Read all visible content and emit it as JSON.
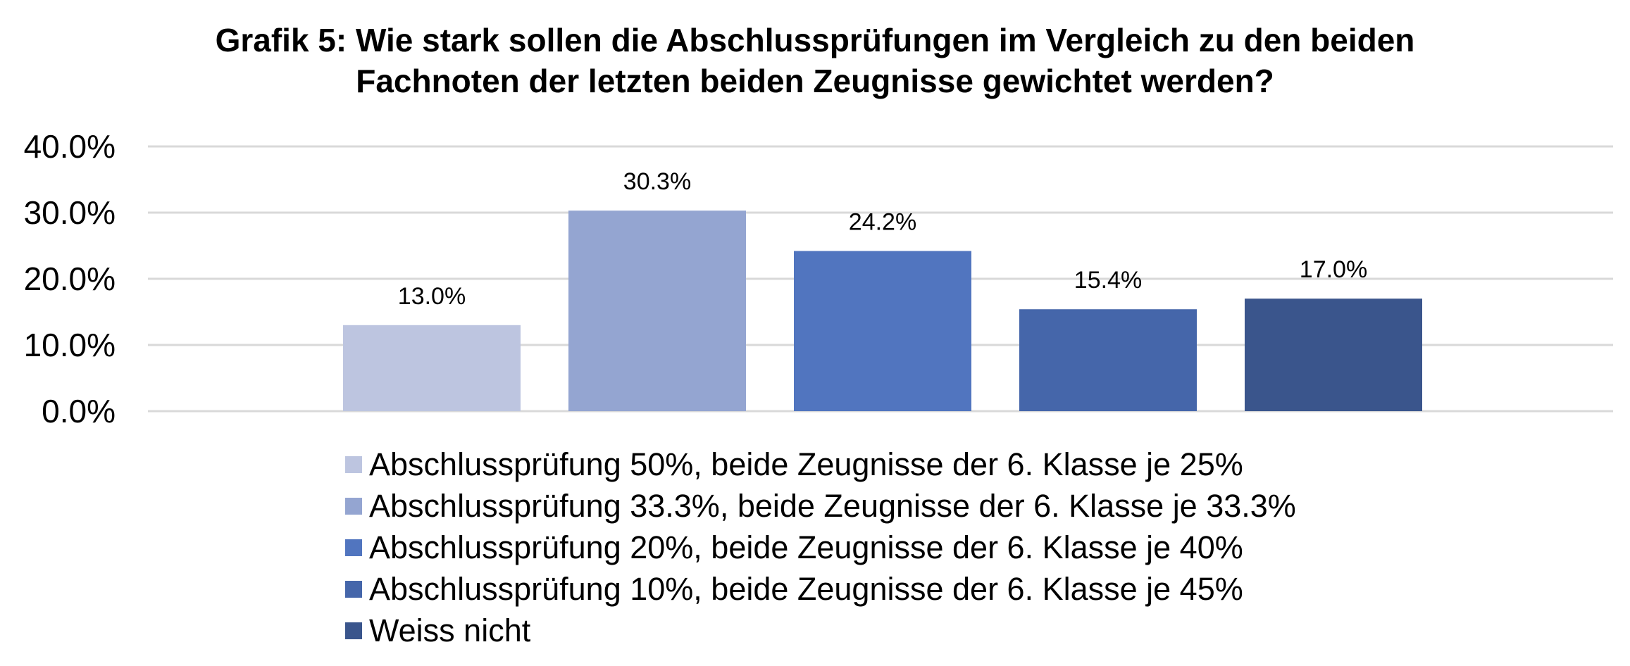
{
  "chart_data": {
    "type": "bar",
    "title_lines": [
      "Grafik 5: Wie stark sollen die Abschlussprüfungen im Vergleich zu den beiden",
      "Fachnoten der letzten beiden Zeugnisse gewichtet werden?"
    ],
    "series": [
      {
        "name": "Abschlussprüfung 50%, beide Zeugnisse der 6. Klasse je 25%",
        "value": 13.0,
        "label": "13.0%",
        "color": "#BDC5E0"
      },
      {
        "name": "Abschlussprüfung 33.3%, beide Zeugnisse der 6. Klasse je 33.3%",
        "value": 30.3,
        "label": "30.3%",
        "color": "#94A5D1"
      },
      {
        "name": "Abschlussprüfung 20%, beide Zeugnisse der 6. Klasse je 40%",
        "value": 24.2,
        "label": "24.2%",
        "color": "#5175BF"
      },
      {
        "name": "Abschlussprüfung 10%, beide Zeugnisse der 6. Klasse je 45%",
        "value": 15.4,
        "label": "15.4%",
        "color": "#4566AA"
      },
      {
        "name": "Weiss nicht",
        "value": 17.0,
        "label": "17.0%",
        "color": "#3A558C"
      }
    ],
    "y_ticks": [
      "0.0%",
      "10.0%",
      "20.0%",
      "30.0%",
      "40.0%"
    ],
    "ylim": [
      0,
      40
    ],
    "grid": true,
    "gridline_color": "#D9D9D9",
    "legend_position": "bottom"
  }
}
